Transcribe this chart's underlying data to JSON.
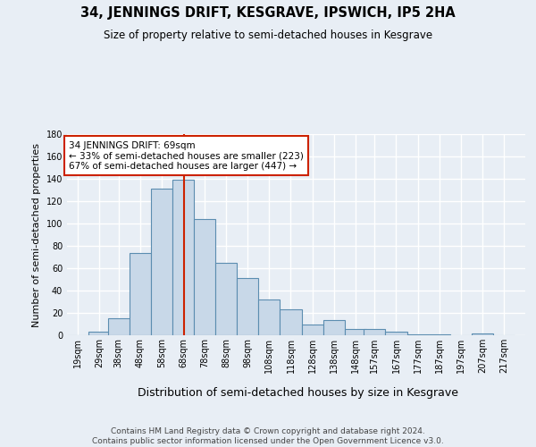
{
  "title": "34, JENNINGS DRIFT, KESGRAVE, IPSWICH, IP5 2HA",
  "subtitle": "Size of property relative to semi-detached houses in Kesgrave",
  "xlabel": "Distribution of semi-detached houses by size in Kesgrave",
  "ylabel": "Number of semi-detached properties",
  "footnote": "Contains HM Land Registry data © Crown copyright and database right 2024.\nContains public sector information licensed under the Open Government Licence v3.0.",
  "bar_labels": [
    "19sqm",
    "29sqm",
    "38sqm",
    "48sqm",
    "58sqm",
    "68sqm",
    "78sqm",
    "88sqm",
    "98sqm",
    "108sqm",
    "118sqm",
    "128sqm",
    "138sqm",
    "148sqm",
    "157sqm",
    "167sqm",
    "177sqm",
    "187sqm",
    "197sqm",
    "207sqm",
    "217sqm"
  ],
  "bar_values": [
    0,
    3,
    15,
    74,
    131,
    139,
    104,
    65,
    51,
    32,
    23,
    10,
    14,
    6,
    6,
    3,
    1,
    1,
    0,
    2,
    0
  ],
  "bar_color": "#c8d8e8",
  "bar_edge_color": "#5b8db0",
  "property_line_x": 69,
  "property_line_color": "#cc2200",
  "annotation_text": "34 JENNINGS DRIFT: 69sqm\n← 33% of semi-detached houses are smaller (223)\n67% of semi-detached houses are larger (447) →",
  "annotation_box_color": "#ffffff",
  "annotation_box_edge": "#cc2200",
  "ylim": [
    0,
    180
  ],
  "yticks": [
    0,
    20,
    40,
    60,
    80,
    100,
    120,
    140,
    160,
    180
  ],
  "background_color": "#e8eef5",
  "plot_bg_color": "#e8eef5",
  "grid_color": "#ffffff",
  "bin_width": 10,
  "bin_starts": [
    14.5,
    24.5,
    33.5,
    43.5,
    53.5,
    63.5,
    73.5,
    83.5,
    93.5,
    103.5,
    113.5,
    123.5,
    133.5,
    143.5,
    152.5,
    162.5,
    172.5,
    182.5,
    192.5,
    202.5,
    212.5
  ],
  "ann_text_fontsize": 7.5,
  "title_fontsize": 10.5,
  "subtitle_fontsize": 8.5,
  "ylabel_fontsize": 8,
  "xlabel_fontsize": 9,
  "footnote_fontsize": 6.5,
  "tick_fontsize": 7
}
